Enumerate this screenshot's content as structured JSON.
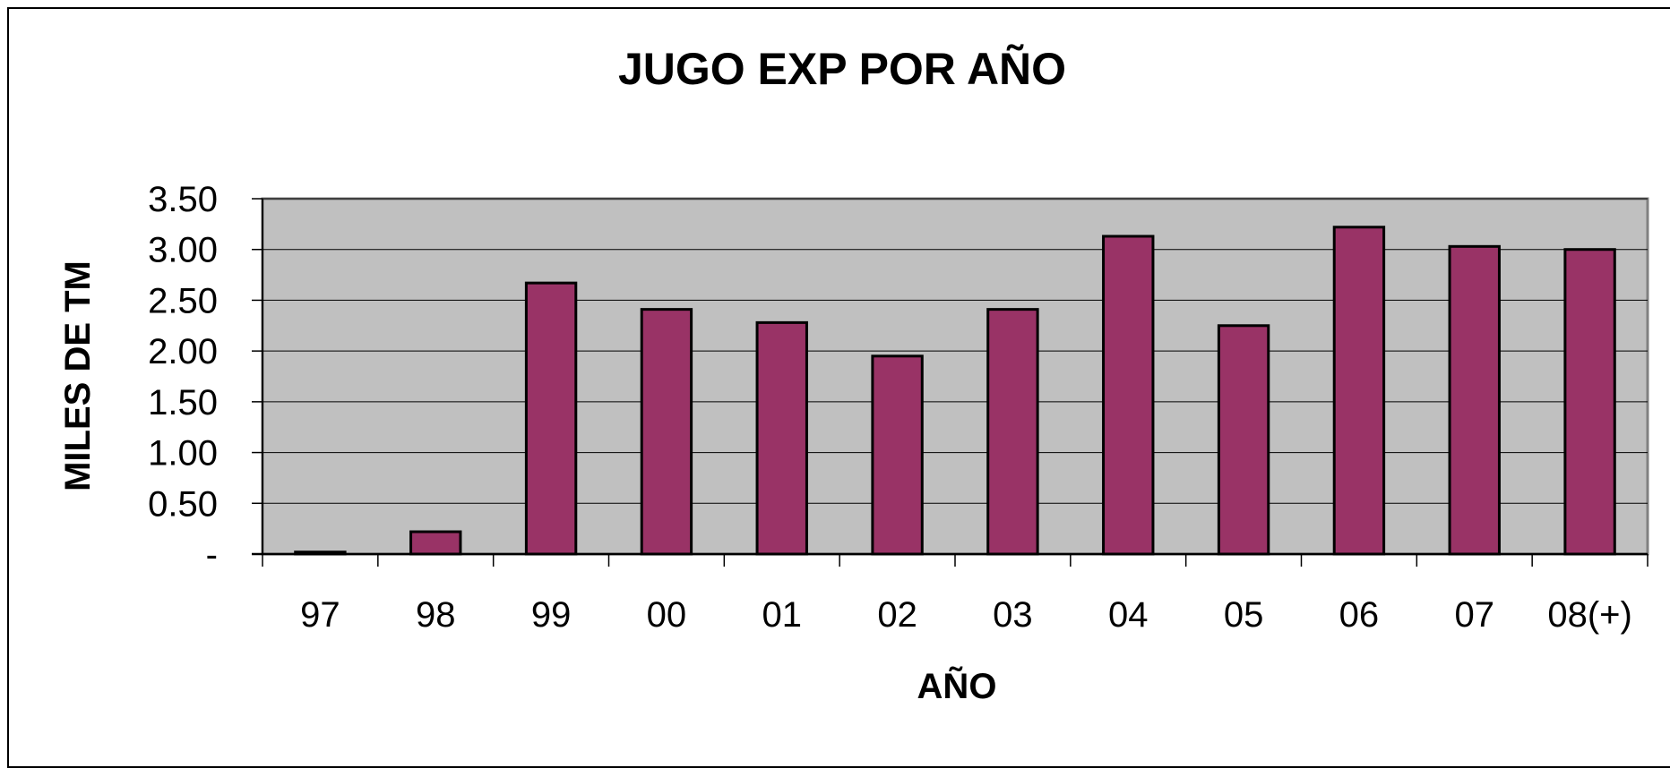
{
  "chart_data": {
    "type": "bar",
    "title": "JUGO EXP POR AÑO",
    "xlabel": "AÑO",
    "ylabel": "MILES DE TM",
    "categories": [
      "97",
      "98",
      "99",
      "00",
      "01",
      "02",
      "03",
      "04",
      "05",
      "06",
      "07",
      "08(+)"
    ],
    "values": [
      0.02,
      0.22,
      2.67,
      2.41,
      2.28,
      1.95,
      2.41,
      3.13,
      2.25,
      3.22,
      3.03,
      3.0
    ],
    "ylim": [
      0,
      3.5
    ],
    "yticks": [
      "-",
      "0.50",
      "1.00",
      "1.50",
      "2.00",
      "2.50",
      "3.00",
      "3.50"
    ],
    "grid": true,
    "legend": "none",
    "colors": {
      "bar": "#993366",
      "plot_background": "#c0c0c0",
      "gridline": "#000000"
    }
  }
}
